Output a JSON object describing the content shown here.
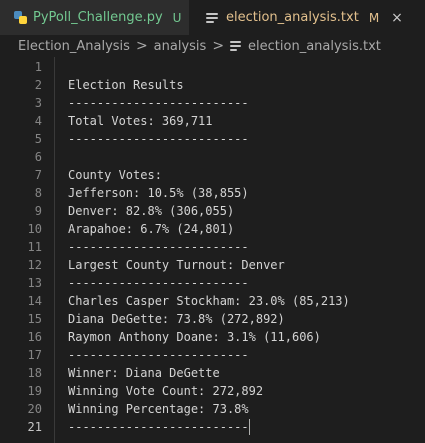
{
  "tabs": [
    {
      "label": "PyPoll_Challenge.py",
      "badge": "U",
      "active": false
    },
    {
      "label": "election_analysis.txt",
      "badge": "M",
      "close": "×",
      "active": true
    }
  ],
  "breadcrumb": {
    "items": [
      "Election_Analysis",
      "analysis",
      "election_analysis.txt"
    ],
    "separator": ">"
  },
  "editor": {
    "lines": [
      "",
      "Election Results",
      "-------------------------",
      "Total Votes: 369,711",
      "-------------------------",
      "",
      "County Votes:",
      "Jefferson: 10.5% (38,855)",
      "Denver: 82.8% (306,055)",
      "Arapahoe: 6.7% (24,801)",
      "-------------------------",
      "Largest County Turnout: Denver",
      "-------------------------",
      "Charles Casper Stockham: 23.0% (85,213)",
      "Diana DeGette: 73.8% (272,892)",
      "Raymon Anthony Doane: 3.1% (11,606)",
      "-------------------------",
      "Winner: Diana DeGette",
      "Winning Vote Count: 272,892",
      "Winning Percentage: 73.8%",
      "-------------------------"
    ],
    "line_numbers": [
      "1",
      "2",
      "3",
      "4",
      "5",
      "6",
      "7",
      "8",
      "9",
      "10",
      "11",
      "12",
      "13",
      "14",
      "15",
      "16",
      "17",
      "18",
      "19",
      "20",
      "21"
    ],
    "active_line": 21
  },
  "colors": {
    "background": "#1e1e1e",
    "untracked": "#73c991",
    "modified": "#e2c08d",
    "text": "#d4d4d4",
    "line_number": "#858585"
  }
}
